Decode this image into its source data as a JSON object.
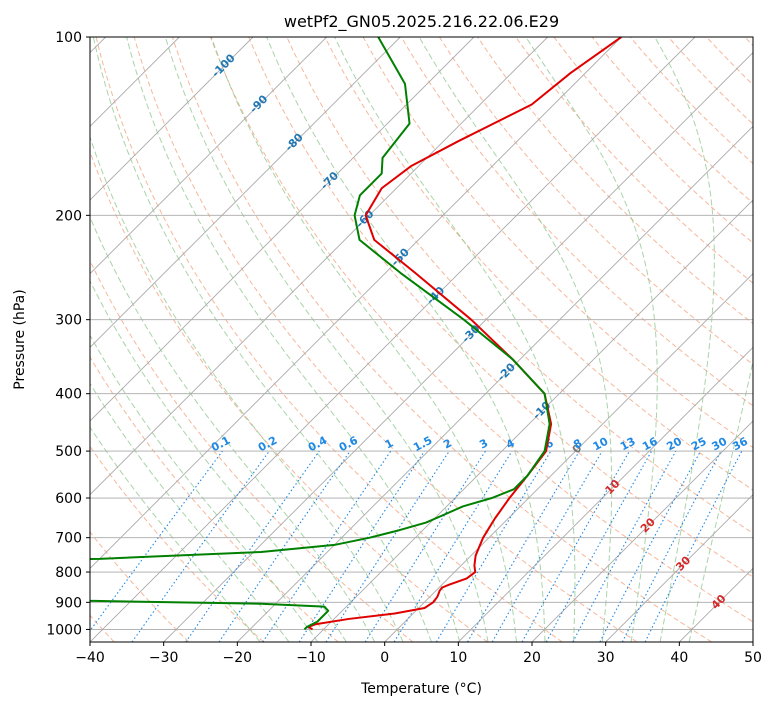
{
  "chart_data": {
    "type": "line",
    "subtype": "skew-t log-p diagram",
    "title": "wetPf2_GN05.2025.216.22.06.E29",
    "xlabel": "Temperature (°C)",
    "ylabel": "Pressure (hPa)",
    "xlim": [
      -40,
      50
    ],
    "ylim": [
      1050,
      100
    ],
    "y_scale": "log",
    "grid": true,
    "x_ticks": [
      -40,
      -30,
      -20,
      -10,
      0,
      10,
      20,
      30,
      40,
      50
    ],
    "y_ticks": [
      100,
      200,
      300,
      400,
      500,
      600,
      700,
      800,
      900,
      1000
    ],
    "isotherm_labels": [
      -100,
      -90,
      -80,
      -70,
      -60,
      -50,
      -40,
      -30,
      -20,
      -10,
      0,
      10,
      20,
      30,
      40
    ],
    "mixing_ratio_labels": [
      "0.1",
      "0.2",
      "0.4",
      "0.6",
      "1",
      "1.5",
      "2",
      "3",
      "4",
      "6",
      "8",
      "10",
      "13",
      "16",
      "20",
      "25",
      "30",
      "36"
    ],
    "colors": {
      "temperature": "#e00000",
      "dewpoint": "#008000",
      "isotherm_cold": "#1f77b4",
      "isotherm_warm": "#d62728",
      "mixing_ratio": "#1e88e5",
      "dry_adiabat": "#f4a582",
      "moist_adiabat": "#8cc68c",
      "grid": "#aaaaaa"
    },
    "series": [
      {
        "name": "Temperature",
        "p": [
          1000,
          990,
          980,
          960,
          940,
          920,
          900,
          880,
          860,
          850,
          840,
          820,
          800,
          780,
          750,
          700,
          650,
          600,
          550,
          500,
          450,
          400,
          350,
          300,
          250,
          220,
          200,
          180,
          165,
          150,
          130,
          115,
          100
        ],
        "t": [
          -11.5,
          -12.4,
          -11.8,
          -8.0,
          -2.5,
          0.8,
          1.2,
          1.0,
          0.5,
          0.4,
          1.0,
          2.5,
          2.8,
          1.8,
          0.6,
          -0.8,
          -1.8,
          -2.6,
          -3.2,
          -4.0,
          -7.0,
          -12.0,
          -21.0,
          -32.0,
          -46.0,
          -56.0,
          -60.5,
          -62.0,
          -61.0,
          -58.0,
          -53.0,
          -52.0,
          -50.0
        ]
      },
      {
        "name": "Dewpoint",
        "p": [
          1000,
          990,
          970,
          950,
          930,
          915,
          905,
          895,
          890,
          885,
          860,
          830,
          800,
          780,
          770,
          765,
          760,
          740,
          720,
          700,
          680,
          660,
          640,
          620,
          600,
          580,
          550,
          500,
          450,
          400,
          350,
          300,
          250,
          220,
          200,
          185,
          170,
          160,
          140,
          120,
          100
        ],
        "t": [
          -12.6,
          -12.6,
          -11.9,
          -11.9,
          -11.9,
          -13.0,
          -22.0,
          -45.0,
          -63.0,
          -79.0,
          -86.0,
          -88.0,
          -90.0,
          -88.0,
          -75.0,
          -64.0,
          -50.0,
          -29.0,
          -20.0,
          -16.2,
          -13.2,
          -10.6,
          -9.2,
          -7.8,
          -5.0,
          -3.2,
          -3.2,
          -4.2,
          -7.2,
          -12.0,
          -21.0,
          -33.0,
          -48.0,
          -58.0,
          -62.0,
          -64.0,
          -64.0,
          -66.0,
          -67.0,
          -73.0,
          -83.0
        ]
      }
    ]
  }
}
